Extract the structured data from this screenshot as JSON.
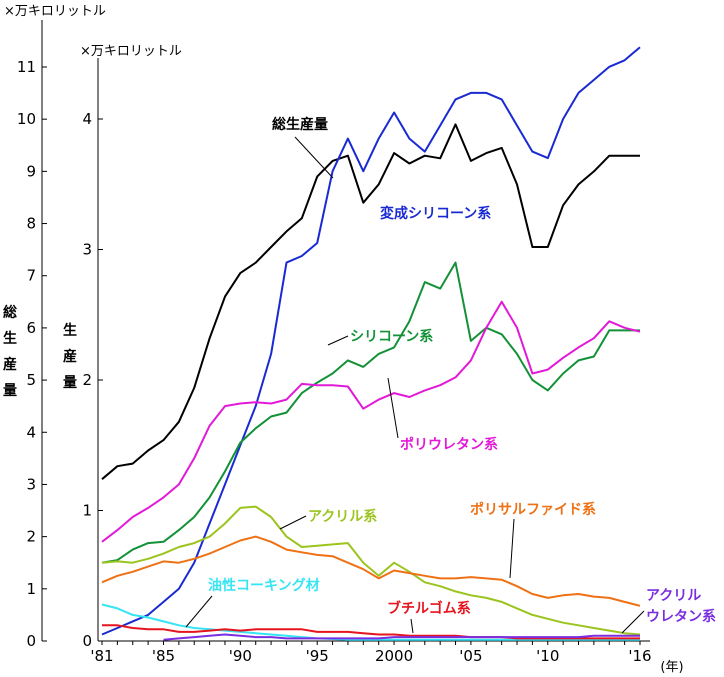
{
  "chart_data": {
    "type": "line",
    "x": [
      1981,
      1982,
      1983,
      1984,
      1985,
      1986,
      1987,
      1988,
      1989,
      1990,
      1991,
      1992,
      1993,
      1994,
      1995,
      1996,
      1997,
      1998,
      1999,
      2000,
      2001,
      2002,
      2003,
      2004,
      2005,
      2006,
      2007,
      2008,
      2009,
      2010,
      2011,
      2012,
      2013,
      2014,
      2015,
      2016
    ],
    "x_tick_labels": [
      {
        "x": 1981,
        "label": "'81"
      },
      {
        "x": 1985,
        "label": "'85"
      },
      {
        "x": 1990,
        "label": "'90"
      },
      {
        "x": 1995,
        "label": "'95"
      },
      {
        "x": 2000,
        "label": "2000"
      },
      {
        "x": 2005,
        "label": "'05"
      },
      {
        "x": 2010,
        "label": "'10"
      },
      {
        "x": 2016,
        "label": "'16"
      }
    ],
    "xlabel": "(年)",
    "left_axis": {
      "unit_label": "×万キロリットル",
      "title_chars": [
        "総",
        "生",
        "産",
        "量"
      ],
      "ticks": [
        0,
        1,
        2,
        3,
        4,
        5,
        6,
        7,
        8,
        9,
        10,
        11
      ],
      "ylim": [
        0,
        11
      ]
    },
    "right_axis": {
      "unit_label": "×万キロリットル",
      "title_chars": [
        "生",
        "産",
        "量"
      ],
      "ticks": [
        0,
        1,
        2,
        3,
        4
      ],
      "ylim": [
        0,
        4
      ]
    },
    "series": [
      {
        "name": "総生産量",
        "axis": "left",
        "color": "#000000",
        "values": [
          3.1,
          3.35,
          3.4,
          3.65,
          3.85,
          4.2,
          4.85,
          5.8,
          6.6,
          7.05,
          7.25,
          7.55,
          7.85,
          8.1,
          8.9,
          9.2,
          9.3,
          8.4,
          8.75,
          9.35,
          9.15,
          9.3,
          9.25,
          9.9,
          9.2,
          9.35,
          9.45,
          8.75,
          7.55,
          7.55,
          8.35,
          8.75,
          9.0,
          9.3,
          9.3,
          9.3
        ]
      },
      {
        "name": "変成シリコーン系",
        "axis": "right",
        "color": "#1a2ad2",
        "values": [
          0.05,
          0.1,
          0.15,
          0.2,
          0.3,
          0.4,
          0.6,
          0.9,
          1.2,
          1.5,
          1.8,
          2.2,
          2.9,
          2.95,
          3.05,
          3.6,
          3.85,
          3.6,
          3.85,
          4.05,
          3.85,
          3.75,
          3.95,
          4.15,
          4.2,
          4.2,
          4.15,
          3.95,
          3.75,
          3.7,
          4.0,
          4.2,
          4.3,
          4.4,
          4.45,
          4.55
        ]
      },
      {
        "name": "シリコーン系",
        "axis": "right",
        "color": "#139137",
        "values": [
          0.6,
          0.62,
          0.7,
          0.75,
          0.76,
          0.85,
          0.95,
          1.1,
          1.3,
          1.52,
          1.63,
          1.72,
          1.75,
          1.9,
          1.98,
          2.05,
          2.15,
          2.1,
          2.2,
          2.25,
          2.45,
          2.75,
          2.7,
          2.9,
          2.3,
          2.4,
          2.35,
          2.2,
          2.0,
          1.92,
          2.05,
          2.15,
          2.18,
          2.38,
          2.38,
          2.38
        ]
      },
      {
        "name": "ポリウレタン系",
        "axis": "right",
        "color": "#e21ad8",
        "values": [
          0.76,
          0.85,
          0.95,
          1.02,
          1.1,
          1.2,
          1.4,
          1.65,
          1.8,
          1.82,
          1.83,
          1.82,
          1.85,
          1.97,
          1.96,
          1.96,
          1.95,
          1.78,
          1.85,
          1.9,
          1.87,
          1.92,
          1.96,
          2.02,
          2.15,
          2.4,
          2.6,
          2.4,
          2.05,
          2.08,
          2.17,
          2.25,
          2.32,
          2.45,
          2.4,
          2.37
        ]
      },
      {
        "name": "アクリル系",
        "axis": "right",
        "color": "#9bc41e",
        "values": [
          0.6,
          0.61,
          0.6,
          0.63,
          0.67,
          0.72,
          0.75,
          0.8,
          0.9,
          1.02,
          1.03,
          0.95,
          0.8,
          0.72,
          0.73,
          0.74,
          0.75,
          0.6,
          0.5,
          0.6,
          0.53,
          0.45,
          0.42,
          0.38,
          0.35,
          0.33,
          0.3,
          0.25,
          0.2,
          0.17,
          0.14,
          0.12,
          0.1,
          0.08,
          0.06,
          0.05
        ]
      },
      {
        "name": "ポリサルファイド系",
        "axis": "right",
        "color": "#ef7115",
        "values": [
          0.45,
          0.5,
          0.53,
          0.57,
          0.61,
          0.6,
          0.63,
          0.67,
          0.72,
          0.77,
          0.8,
          0.76,
          0.7,
          0.68,
          0.66,
          0.65,
          0.6,
          0.55,
          0.48,
          0.54,
          0.52,
          0.5,
          0.48,
          0.48,
          0.49,
          0.48,
          0.47,
          0.42,
          0.36,
          0.33,
          0.35,
          0.36,
          0.34,
          0.33,
          0.3,
          0.27
        ]
      },
      {
        "name": "油性コーキング材",
        "axis": "right",
        "color": "#36e4f2",
        "values": [
          0.28,
          0.25,
          0.2,
          0.18,
          0.15,
          0.12,
          0.1,
          0.09,
          0.08,
          0.07,
          0.06,
          0.05,
          0.04,
          0.03,
          0.02,
          0.015,
          0.01,
          0.01,
          0.01,
          0.01,
          0.01,
          0.01,
          0.01,
          0.01,
          0.01,
          0.01,
          0.01,
          0.01,
          0.01,
          0.01,
          0.01,
          0.01,
          0.01,
          0.01,
          0.01,
          0.01
        ]
      },
      {
        "name": "ブチルゴム系",
        "axis": "right",
        "color": "#e5141e",
        "values": [
          0.12,
          0.12,
          0.1,
          0.09,
          0.09,
          0.07,
          0.07,
          0.08,
          0.09,
          0.08,
          0.09,
          0.09,
          0.09,
          0.09,
          0.07,
          0.07,
          0.07,
          0.06,
          0.05,
          0.05,
          0.04,
          0.04,
          0.04,
          0.04,
          0.03,
          0.03,
          0.03,
          0.02,
          0.02,
          0.02,
          0.02,
          0.02,
          0.02,
          0.02,
          0.02,
          0.02
        ]
      },
      {
        "name": "アクリルウレタン系",
        "axis": "right",
        "color": "#7a2ee0",
        "values": [
          null,
          null,
          null,
          null,
          0.01,
          0.02,
          0.03,
          0.04,
          0.05,
          0.04,
          0.03,
          0.03,
          0.02,
          0.02,
          0.02,
          0.02,
          0.02,
          0.02,
          0.02,
          0.03,
          0.03,
          0.03,
          0.03,
          0.03,
          0.03,
          0.03,
          0.03,
          0.03,
          0.03,
          0.03,
          0.03,
          0.03,
          0.04,
          0.04,
          0.04,
          0.04
        ]
      }
    ],
    "annotations": [
      {
        "text": "総生産量",
        "color": "#000000"
      },
      {
        "text": "変成シリコーン系",
        "color": "#1a2ad2"
      },
      {
        "text": "シリコーン系",
        "color": "#139137"
      },
      {
        "text": "ポリウレタン系",
        "color": "#e21ad8"
      },
      {
        "text": "アクリル系",
        "color": "#9bc41e"
      },
      {
        "text": "ポリサルファイド系",
        "color": "#ef7115"
      },
      {
        "text": "油性コーキング材",
        "color": "#36e4f2"
      },
      {
        "text": "ブチルゴム系",
        "color": "#e5141e"
      },
      {
        "text": "アクリル",
        "color": "#7a2ee0"
      },
      {
        "text": "ウレタン系",
        "color": "#7a2ee0"
      }
    ]
  }
}
